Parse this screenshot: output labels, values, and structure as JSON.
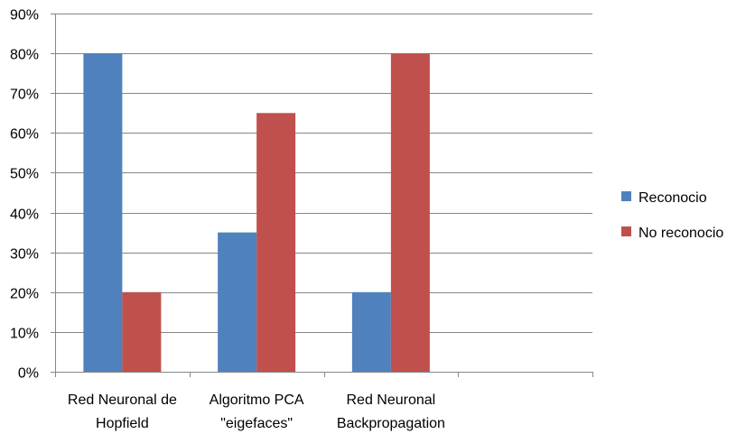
{
  "chart_data": {
    "type": "bar",
    "categories": [
      [
        "Red Neuronal de",
        "Hopfield"
      ],
      [
        "Algoritmo PCA",
        "\"eigefaces\""
      ],
      [
        "Red Neuronal",
        "Backpropagation"
      ],
      [
        ""
      ]
    ],
    "series": [
      {
        "name": "Reconocio",
        "color": "#4f81bd",
        "values": [
          80,
          35,
          20,
          null
        ]
      },
      {
        "name": "No reconocio",
        "color": "#c0504d",
        "values": [
          20,
          65,
          80,
          null
        ]
      }
    ],
    "ylim": [
      0,
      90
    ],
    "yticks": [
      "0%",
      "10%",
      "20%",
      "30%",
      "40%",
      "50%",
      "60%",
      "70%",
      "80%",
      "90%"
    ],
    "grid": true,
    "legend_position": "right"
  }
}
